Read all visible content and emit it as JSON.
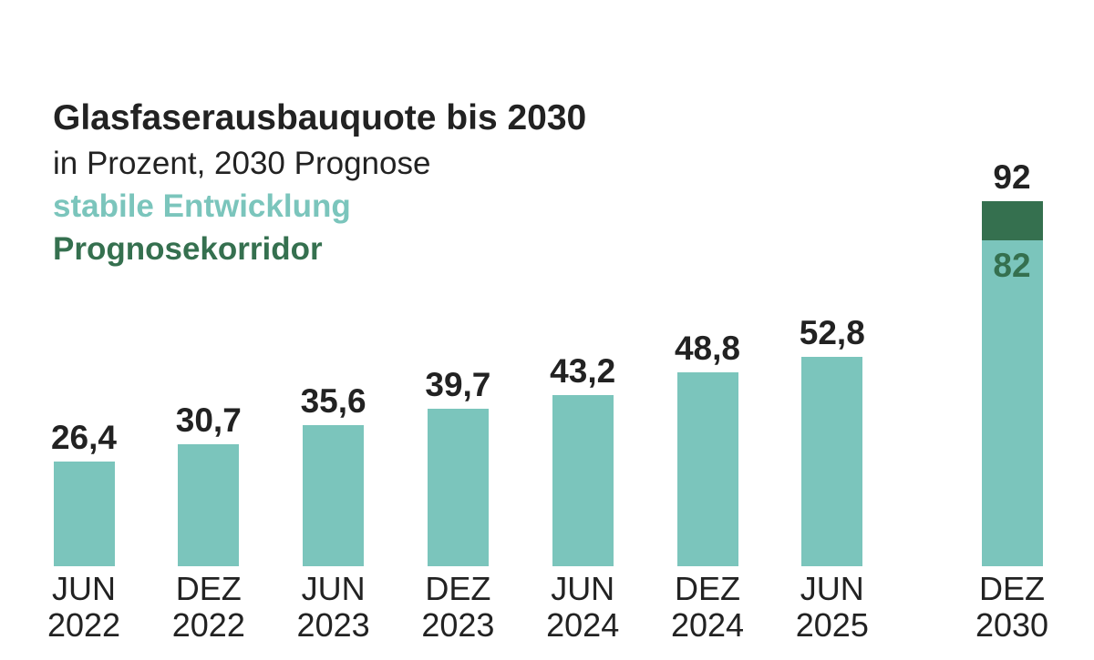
{
  "chart_data": {
    "type": "bar",
    "title": "Glasfaserausbauquote bis 2030",
    "subtitle": "in Prozent, 2030 Prognose",
    "categories": [
      "JUN 2022",
      "DEZ 2022",
      "JUN 2023",
      "DEZ 2023",
      "JUN 2024",
      "DEZ 2024",
      "JUN 2025",
      "DEZ 2030"
    ],
    "series": [
      {
        "name": "stabile Entwicklung",
        "color": "#7bc5bc",
        "values": [
          26.4,
          30.7,
          35.6,
          39.7,
          43.2,
          48.8,
          52.8,
          82
        ],
        "value_labels": [
          "26,4",
          "30,7",
          "35,6",
          "39,7",
          "43,2",
          "48,8",
          "52,8",
          "82"
        ]
      },
      {
        "name": "Prognosekorridor",
        "color": "#35704f",
        "values": [
          null,
          null,
          null,
          null,
          null,
          null,
          null,
          92
        ]
      }
    ]
  }
}
